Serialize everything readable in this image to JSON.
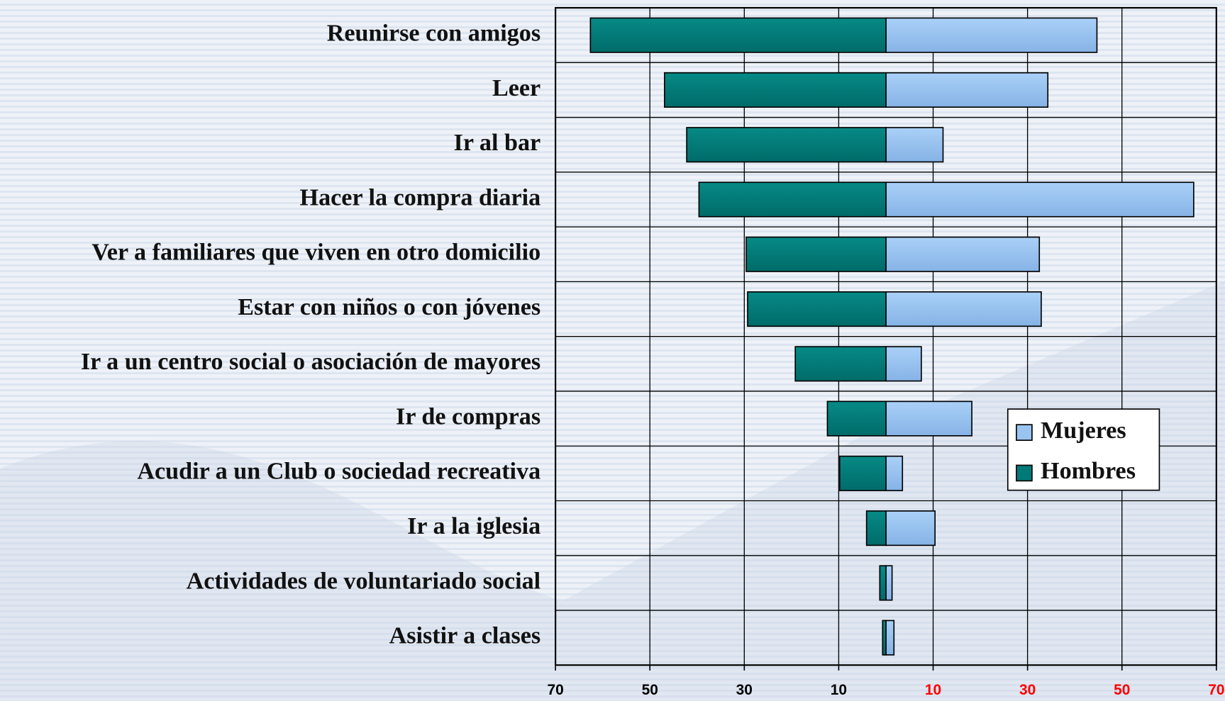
{
  "chart_data": {
    "type": "diverging-bar",
    "categories": [
      "Reunirse con amigos",
      "Leer",
      "Ir al bar",
      "Hacer la compra diaria",
      "Ver a familiares que viven en otro domicilio",
      "Estar con niños o con jóvenes",
      "Ir a un centro social o asociación de mayores",
      "Ir de compras",
      "Acudir a un Club o sociedad recreativa",
      "Ir a la iglesia",
      "Actividades de voluntariado social",
      "Asistir a clases"
    ],
    "series": [
      {
        "name": "Mujeres",
        "color": "#99c4f0",
        "values": [
          44.7,
          34.3,
          12.1,
          65.2,
          32.5,
          32.9,
          7.5,
          18.2,
          3.5,
          10.4,
          1.3,
          1.7
        ]
      },
      {
        "name": "Hombres",
        "color": "#007a78",
        "values": [
          -62.6,
          -46.9,
          -42.2,
          -39.6,
          -29.6,
          -29.3,
          -19.2,
          -12.4,
          -9.8,
          -4.1,
          -1.3,
          -0.7
        ]
      }
    ],
    "xlim": [
      -70,
      70
    ],
    "xticks": [
      {
        "value": -70,
        "label": "70"
      },
      {
        "value": -50,
        "label": "50"
      },
      {
        "value": -30,
        "label": "30"
      },
      {
        "value": -10,
        "label": "10"
      },
      10,
      30,
      50,
      70
    ],
    "grid": true,
    "legend": "right"
  }
}
